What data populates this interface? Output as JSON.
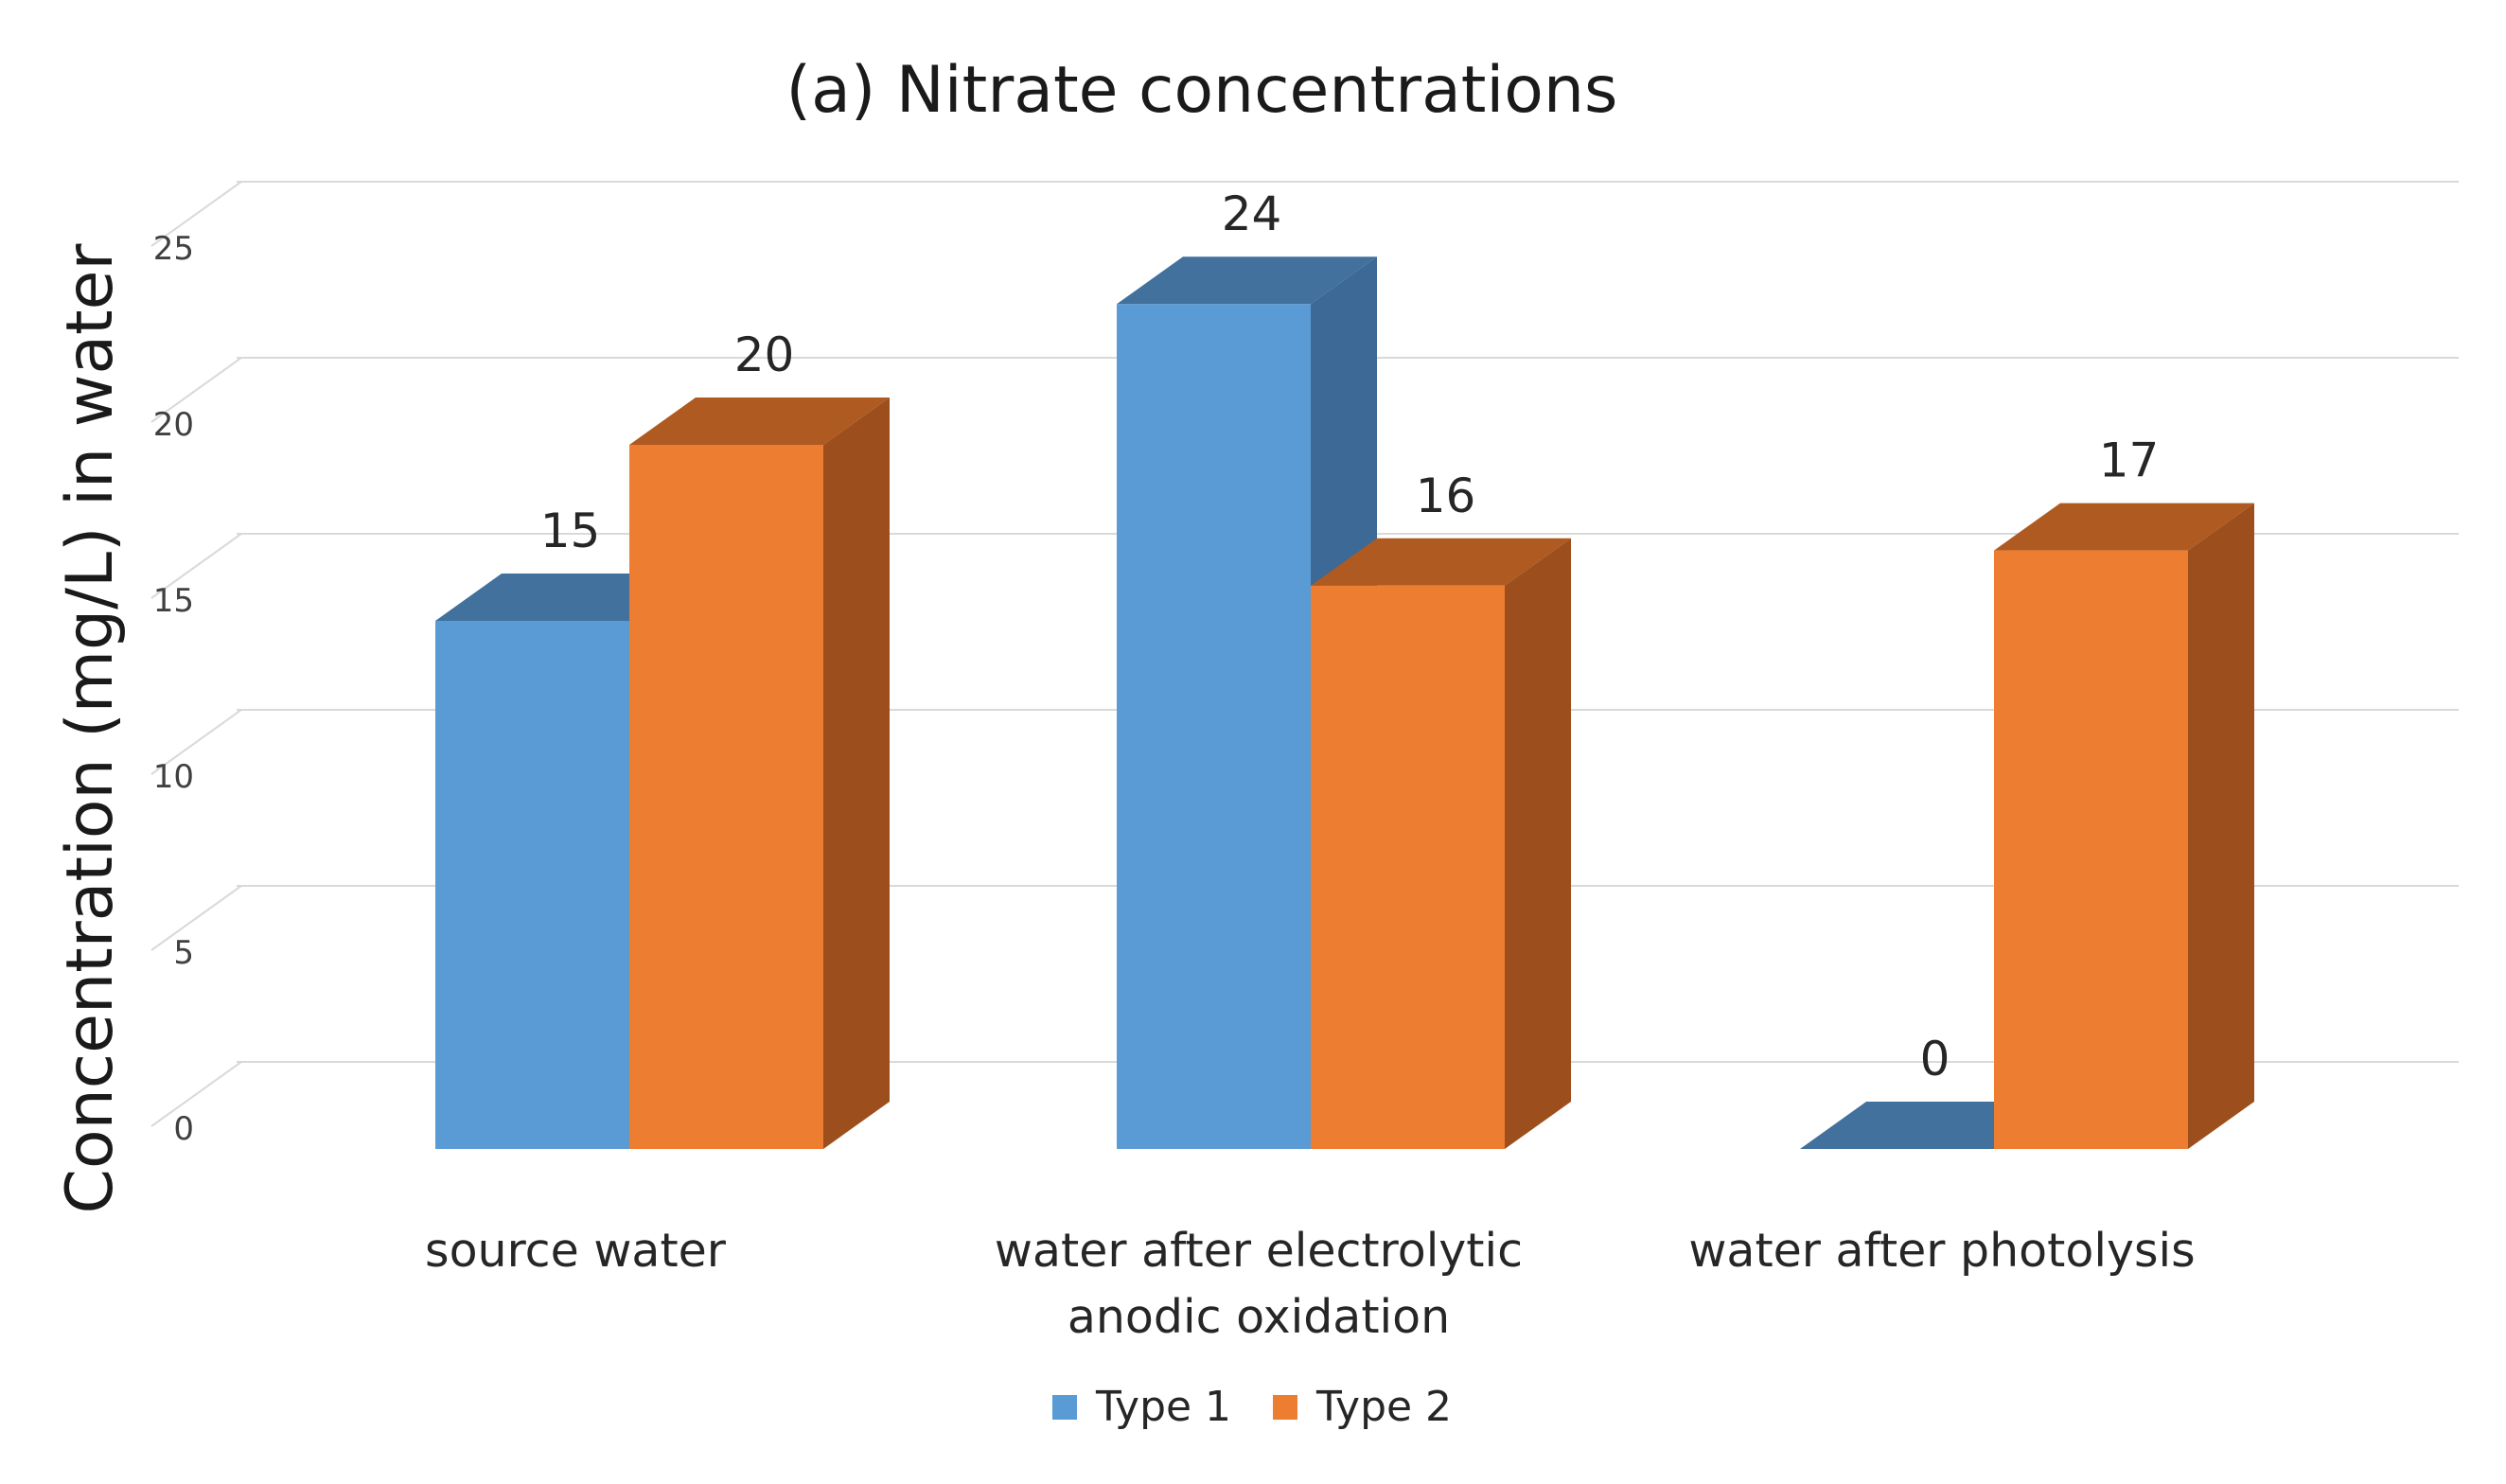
{
  "chart_data": {
    "type": "bar",
    "title": "(a) Nitrate concentrations",
    "xlabel": "",
    "ylabel": "Concentration (mg/L) in water",
    "categories": [
      [
        "source water"
      ],
      [
        "water after electrolytic",
        "anodic oxidation"
      ],
      [
        "water after photolysis"
      ]
    ],
    "series": [
      {
        "name": "Type 1",
        "values": [
          15,
          24,
          0
        ],
        "color": "#5B9BD5",
        "top_color": "#41719C",
        "side_color": "#3C6995"
      },
      {
        "name": "Type 2",
        "values": [
          20,
          16,
          17
        ],
        "color": "#ED7D31",
        "top_color": "#AE5A21",
        "side_color": "#9C4F1C"
      }
    ],
    "ylim": [
      0,
      25
    ],
    "yticks": [
      "0",
      "5",
      "10",
      "15",
      "20",
      "25"
    ],
    "ytick_values": [
      0,
      5,
      10,
      15,
      20,
      25
    ],
    "grid": true,
    "legend": "bottom-center",
    "projection": "3d-column"
  }
}
